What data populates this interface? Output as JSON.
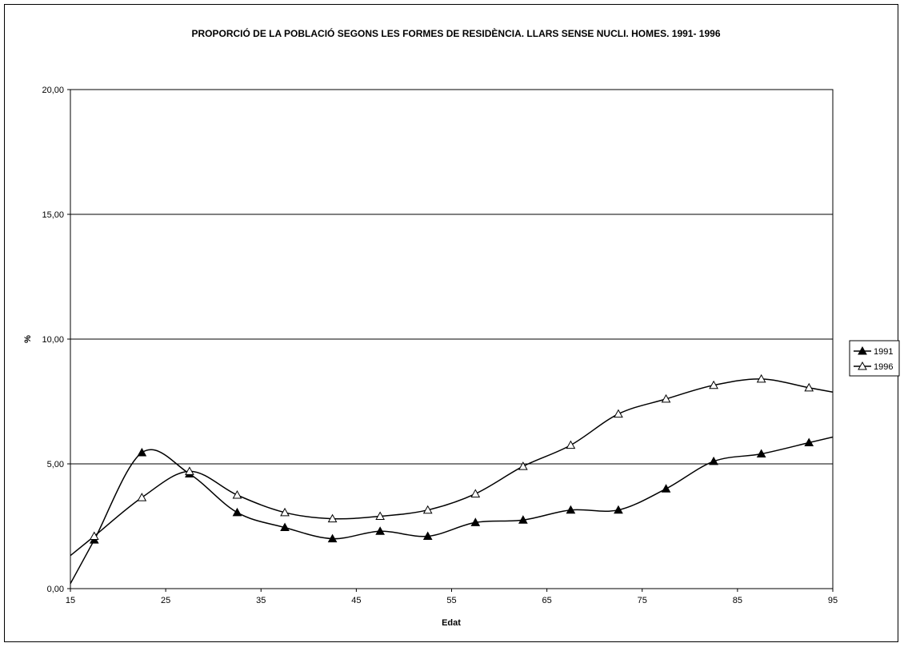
{
  "chart_data": {
    "type": "line",
    "title": "PROPORCIÓ DE LA POBLACIÓ SEGONS LES FORMES DE RESIDÈNCIA. LLARS SENSE NUCLI. HOMES. 1991- 1996",
    "xlabel": "Edat",
    "ylabel": "%",
    "xlim": [
      15,
      95
    ],
    "ylim": [
      0,
      20
    ],
    "x_ticks": [
      "15",
      "25",
      "35",
      "45",
      "55",
      "65",
      "75",
      "85",
      "95"
    ],
    "y_ticks": [
      "0,00",
      "5,00",
      "10,00",
      "15,00",
      "20,00"
    ],
    "grid": "horizontal",
    "legend_position": "right",
    "series": [
      {
        "name": "1991",
        "marker": "filled-triangle",
        "color": "#000000",
        "x": [
          17.5,
          22.5,
          27.5,
          32.5,
          37.5,
          42.5,
          47.5,
          52.5,
          57.5,
          62.5,
          67.5,
          72.5,
          77.5,
          82.5,
          87.5,
          92.5
        ],
        "values": [
          1.95,
          5.45,
          4.6,
          3.05,
          2.45,
          2.0,
          2.3,
          2.1,
          2.65,
          2.75,
          3.15,
          3.15,
          4.0,
          5.1,
          5.4,
          5.85
        ]
      },
      {
        "name": "1996",
        "marker": "open-triangle",
        "color": "#000000",
        "x": [
          17.5,
          22.5,
          27.5,
          32.5,
          37.5,
          42.5,
          47.5,
          52.5,
          57.5,
          62.5,
          67.5,
          72.5,
          77.5,
          82.5,
          87.5,
          92.5
        ],
        "values": [
          2.1,
          3.65,
          4.7,
          3.75,
          3.05,
          2.8,
          2.9,
          3.15,
          3.8,
          4.9,
          5.75,
          7.0,
          7.6,
          8.15,
          8.4,
          8.05
        ]
      }
    ]
  }
}
